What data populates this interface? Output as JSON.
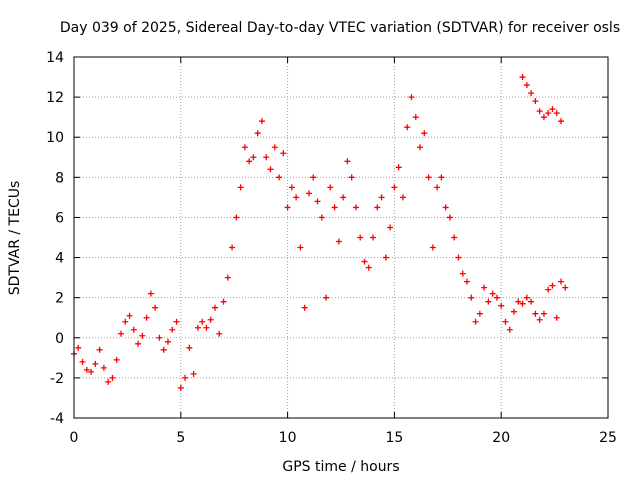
{
  "chart_data": {
    "type": "scatter",
    "title": "Day 039 of 2025, Sidereal Day-to-day VTEC variation (SDTVAR) for receiver osls",
    "xlabel": "GPS time / hours",
    "ylabel": "SDTVAR / TECUs",
    "xlim": [
      0,
      25
    ],
    "ylim": [
      -4,
      14
    ],
    "xticks": [
      "0",
      "5",
      "10",
      "15",
      "20",
      "25"
    ],
    "yticks": [
      "-4",
      "-2",
      "0",
      "2",
      "4",
      "6",
      "8",
      "10",
      "12",
      "14"
    ],
    "grid": true,
    "marker": "plus",
    "color": "#ff0000",
    "series": [
      {
        "name": "SDTVAR",
        "x": [
          0.0,
          0.2,
          0.4,
          0.6,
          0.8,
          1.0,
          1.2,
          1.4,
          1.6,
          1.8,
          2.0,
          2.2,
          2.4,
          2.6,
          2.8,
          3.0,
          3.2,
          3.4,
          3.6,
          3.8,
          4.0,
          4.2,
          4.4,
          4.6,
          4.8,
          5.0,
          5.2,
          5.4,
          5.6,
          5.8,
          6.0,
          6.2,
          6.4,
          6.6,
          6.8,
          7.0,
          7.2,
          7.4,
          7.6,
          7.8,
          8.0,
          8.2,
          8.4,
          8.6,
          8.8,
          9.0,
          9.2,
          9.4,
          9.6,
          9.8,
          10.0,
          10.2,
          10.4,
          10.6,
          10.8,
          11.0,
          11.2,
          11.4,
          11.6,
          11.8,
          12.0,
          12.2,
          12.4,
          12.6,
          12.8,
          13.0,
          13.2,
          13.4,
          13.6,
          13.8,
          14.0,
          14.2,
          14.4,
          14.6,
          14.8,
          15.0,
          15.2,
          15.4,
          15.6,
          15.8,
          16.0,
          16.2,
          16.4,
          16.6,
          16.8,
          17.0,
          17.2,
          17.4,
          17.6,
          17.8,
          18.0,
          18.2,
          18.4,
          18.6,
          18.8,
          19.0,
          19.2,
          19.4,
          19.6,
          19.8,
          20.0,
          20.2,
          20.4,
          20.6,
          20.8,
          21.0,
          21.2,
          21.4,
          21.6,
          21.8,
          22.0,
          22.2,
          22.4,
          22.6,
          22.8,
          23.0,
          21.0,
          21.2,
          21.4,
          21.6,
          21.8,
          22.0,
          22.2,
          22.4,
          22.6,
          22.8
        ],
        "y": [
          -0.8,
          -0.5,
          -1.2,
          -1.6,
          -1.7,
          -1.3,
          -0.6,
          -1.5,
          -2.2,
          -2.0,
          -1.1,
          0.2,
          0.8,
          1.1,
          0.4,
          -0.3,
          0.1,
          1.0,
          2.2,
          1.5,
          0.0,
          -0.6,
          -0.2,
          0.4,
          0.8,
          -2.5,
          -2.0,
          -0.5,
          -1.8,
          0.5,
          0.8,
          0.5,
          0.9,
          1.5,
          0.2,
          1.8,
          3.0,
          4.5,
          6.0,
          7.5,
          9.5,
          8.8,
          9.0,
          10.2,
          10.8,
          9.0,
          8.4,
          9.5,
          8.0,
          9.2,
          6.5,
          7.5,
          7.0,
          4.5,
          1.5,
          7.2,
          8.0,
          6.8,
          6.0,
          2.0,
          7.5,
          6.5,
          4.8,
          7.0,
          8.8,
          8.0,
          6.5,
          5.0,
          3.8,
          3.5,
          5.0,
          6.5,
          7.0,
          4.0,
          5.5,
          7.5,
          8.5,
          7.0,
          10.5,
          12.0,
          11.0,
          9.5,
          10.2,
          8.0,
          4.5,
          7.5,
          8.0,
          6.5,
          6.0,
          5.0,
          4.0,
          3.2,
          2.8,
          2.0,
          0.8,
          1.2,
          2.5,
          1.8,
          2.2,
          2.0,
          1.6,
          0.8,
          0.4,
          1.3,
          1.8,
          1.7,
          2.0,
          1.8,
          1.2,
          0.9,
          1.2,
          2.4,
          2.6,
          1.0,
          2.8,
          2.5,
          13.0,
          12.6,
          12.2,
          11.8,
          11.3,
          11.0,
          11.2,
          11.4,
          11.2,
          10.8
        ]
      }
    ]
  }
}
